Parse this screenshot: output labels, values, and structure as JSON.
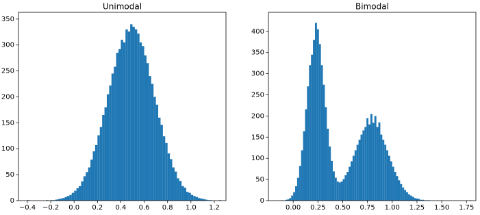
{
  "chart_data": [
    {
      "type": "histogram",
      "title": "Unimodal",
      "color": "#1f77b4",
      "bins": [
        -0.4,
        -0.38,
        -0.36,
        -0.34,
        -0.32,
        -0.3,
        -0.28,
        -0.26,
        -0.24,
        -0.22,
        -0.2,
        -0.18,
        -0.16,
        -0.14,
        -0.12,
        -0.1,
        -0.08,
        -0.06,
        -0.04,
        -0.02,
        0,
        0.02,
        0.04,
        0.06,
        0.08,
        0.1,
        0.12,
        0.14,
        0.16,
        0.18,
        0.2,
        0.22,
        0.24,
        0.26,
        0.28,
        0.3,
        0.32,
        0.34,
        0.36,
        0.38,
        0.4,
        0.42,
        0.44,
        0.46,
        0.48,
        0.5,
        0.52,
        0.54,
        0.56,
        0.58,
        0.6,
        0.62,
        0.64,
        0.66,
        0.68,
        0.7,
        0.72,
        0.74,
        0.76,
        0.78,
        0.8,
        0.82,
        0.84,
        0.86,
        0.88,
        0.9,
        0.92,
        0.94,
        0.96,
        0.98,
        1,
        1.02,
        1.04,
        1.06,
        1.08,
        1.1,
        1.12,
        1.14,
        1.16,
        1.18,
        1.2,
        1.22,
        1.24,
        1.26
      ],
      "values": [
        1,
        0,
        0,
        0,
        0,
        0,
        0,
        0,
        1,
        0,
        1,
        1,
        2,
        3,
        4,
        5,
        7,
        9,
        11,
        15,
        19,
        24,
        28,
        37,
        47,
        55,
        64,
        79,
        95,
        107,
        126,
        142,
        165,
        180,
        205,
        222,
        245,
        258,
        285,
        292,
        310,
        305,
        330,
        326,
        340,
        335,
        330,
        322,
        305,
        298,
        280,
        265,
        240,
        225,
        200,
        185,
        160,
        146,
        124,
        111,
        91,
        80,
        64,
        56,
        43,
        38,
        28,
        25,
        17,
        15,
        11,
        9,
        7,
        5,
        4,
        3,
        2,
        1,
        1,
        0,
        0,
        0,
        1
      ],
      "xlim": [
        -0.476,
        1.3
      ],
      "ylim": [
        0,
        363
      ],
      "xticks": [
        {
          "value": -0.4,
          "label": "−0.4"
        },
        {
          "value": -0.2,
          "label": "−0.2"
        },
        {
          "value": 0,
          "label": "0.0"
        },
        0.2,
        0.4,
        0.6,
        0.8,
        {
          "value": 1,
          "label": "1.0"
        },
        1.2
      ],
      "yticks": [
        0,
        50,
        100,
        150,
        200,
        250,
        300,
        350
      ]
    },
    {
      "type": "histogram",
      "title": "Bimodal",
      "color": "#1f77b4",
      "bins": [
        -0.16,
        -0.14,
        -0.12,
        -0.1,
        -0.08,
        -0.06,
        -0.04,
        -0.02,
        0,
        0.02,
        0.04,
        0.06,
        0.08,
        0.1,
        0.12,
        0.14,
        0.16,
        0.18,
        0.2,
        0.22,
        0.24,
        0.26,
        0.28,
        0.3,
        0.32,
        0.34,
        0.36,
        0.38,
        0.4,
        0.42,
        0.44,
        0.46,
        0.48,
        0.5,
        0.52,
        0.54,
        0.56,
        0.58,
        0.6,
        0.62,
        0.64,
        0.66,
        0.68,
        0.7,
        0.72,
        0.74,
        0.76,
        0.78,
        0.8,
        0.82,
        0.84,
        0.86,
        0.88,
        0.9,
        0.92,
        0.94,
        0.96,
        0.98,
        1,
        1.02,
        1.04,
        1.06,
        1.08,
        1.1,
        1.12,
        1.14,
        1.16,
        1.18,
        1.2,
        1.22,
        1.24,
        1.26,
        1.28,
        1.3,
        1.32,
        1.34,
        1.36,
        1.38,
        1.4,
        1.42,
        1.44,
        1.46,
        1.48,
        1.5,
        1.52,
        1.54,
        1.56,
        1.58,
        1.6,
        1.62,
        1.64,
        1.66,
        1.68,
        1.7,
        1.72,
        1.74,
        1.76,
        1.78,
        1.8
      ],
      "values": [
        0,
        0,
        1,
        0,
        2,
        3,
        6,
        12,
        20,
        34,
        54,
        82,
        119,
        164,
        216,
        270,
        320,
        345,
        380,
        420,
        405,
        370,
        320,
        274,
        221,
        170,
        128,
        94,
        69,
        54,
        45,
        43,
        45,
        51,
        60,
        68,
        80,
        93,
        106,
        119,
        132,
        144,
        156,
        166,
        174,
        195,
        180,
        205,
        184,
        200,
        174,
        185,
        156,
        144,
        132,
        119,
        106,
        93,
        80,
        68,
        58,
        48,
        39,
        31,
        25,
        20,
        15,
        12,
        9,
        6,
        5,
        4,
        2,
        2,
        1,
        1,
        1,
        0,
        0,
        0,
        0,
        0,
        0,
        0,
        0,
        0,
        0,
        0,
        0,
        0,
        0,
        0,
        0,
        0,
        0,
        0,
        0,
        1
      ],
      "xlim": [
        -0.25,
        1.845
      ],
      "ylim": [
        0,
        445
      ],
      "xticks": [
        {
          "value": 0,
          "label": "0.00"
        },
        0.25,
        {
          "value": 0.5,
          "label": "0.50"
        },
        0.75,
        {
          "value": 1,
          "label": "1.00"
        },
        1.25,
        {
          "value": 1.5,
          "label": "1.50"
        },
        1.75
      ],
      "yticks": [
        0,
        50,
        100,
        150,
        200,
        250,
        300,
        350,
        400
      ]
    }
  ]
}
